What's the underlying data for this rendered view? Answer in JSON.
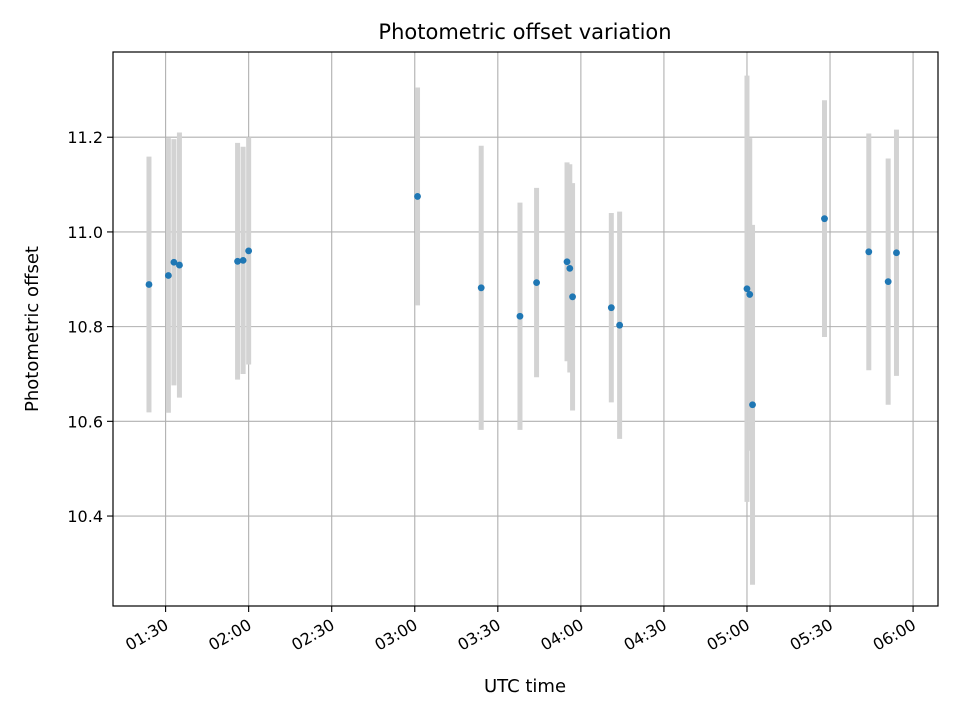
{
  "chart_data": {
    "type": "scatter",
    "title": "Photometric offset variation",
    "xlabel": "UTC time",
    "ylabel": "Photometric offset",
    "x_unit": "UTC time (HH:MM)",
    "xlim": [
      "01:11",
      "06:09"
    ],
    "ylim": [
      10.21,
      11.38
    ],
    "grid": true,
    "x_ticks": [
      "01:30",
      "02:00",
      "02:30",
      "03:00",
      "03:30",
      "04:00",
      "04:30",
      "05:00",
      "05:30",
      "06:00"
    ],
    "y_ticks": [
      "10.4",
      "10.6",
      "10.8",
      "11.0",
      "11.2"
    ],
    "x_tick_rotation": -30,
    "point_color": "#1f77b4",
    "errorbar_color": "#d3d3d3",
    "series": [
      {
        "points": [
          {
            "t": "01:24",
            "y": 10.889,
            "err": 0.27
          },
          {
            "t": "01:31",
            "y": 10.908,
            "err": 0.29
          },
          {
            "t": "01:33",
            "y": 10.936,
            "err": 0.26
          },
          {
            "t": "01:35",
            "y": 10.93,
            "err": 0.28
          },
          {
            "t": "01:56",
            "y": 10.938,
            "err": 0.25
          },
          {
            "t": "01:58",
            "y": 10.94,
            "err": 0.24
          },
          {
            "t": "02:00",
            "y": 10.96,
            "err": 0.24
          },
          {
            "t": "03:01",
            "y": 11.075,
            "err": 0.23
          },
          {
            "t": "03:24",
            "y": 10.882,
            "err": 0.3
          },
          {
            "t": "03:38",
            "y": 10.822,
            "err": 0.24
          },
          {
            "t": "03:44",
            "y": 10.893,
            "err": 0.2
          },
          {
            "t": "03:55",
            "y": 10.937,
            "err": 0.21
          },
          {
            "t": "03:56",
            "y": 10.923,
            "err": 0.22
          },
          {
            "t": "03:57",
            "y": 10.863,
            "err": 0.24
          },
          {
            "t": "04:11",
            "y": 10.84,
            "err": 0.2
          },
          {
            "t": "04:14",
            "y": 10.803,
            "err": 0.24
          },
          {
            "t": "05:00",
            "y": 10.88,
            "err": 0.45
          },
          {
            "t": "05:01",
            "y": 10.868,
            "err": 0.33
          },
          {
            "t": "05:02",
            "y": 10.635,
            "err": 0.38
          },
          {
            "t": "05:28",
            "y": 11.028,
            "err": 0.25
          },
          {
            "t": "05:44",
            "y": 10.958,
            "err": 0.25
          },
          {
            "t": "05:51",
            "y": 10.895,
            "err": 0.26
          },
          {
            "t": "05:54",
            "y": 10.956,
            "err": 0.26
          }
        ]
      }
    ]
  }
}
